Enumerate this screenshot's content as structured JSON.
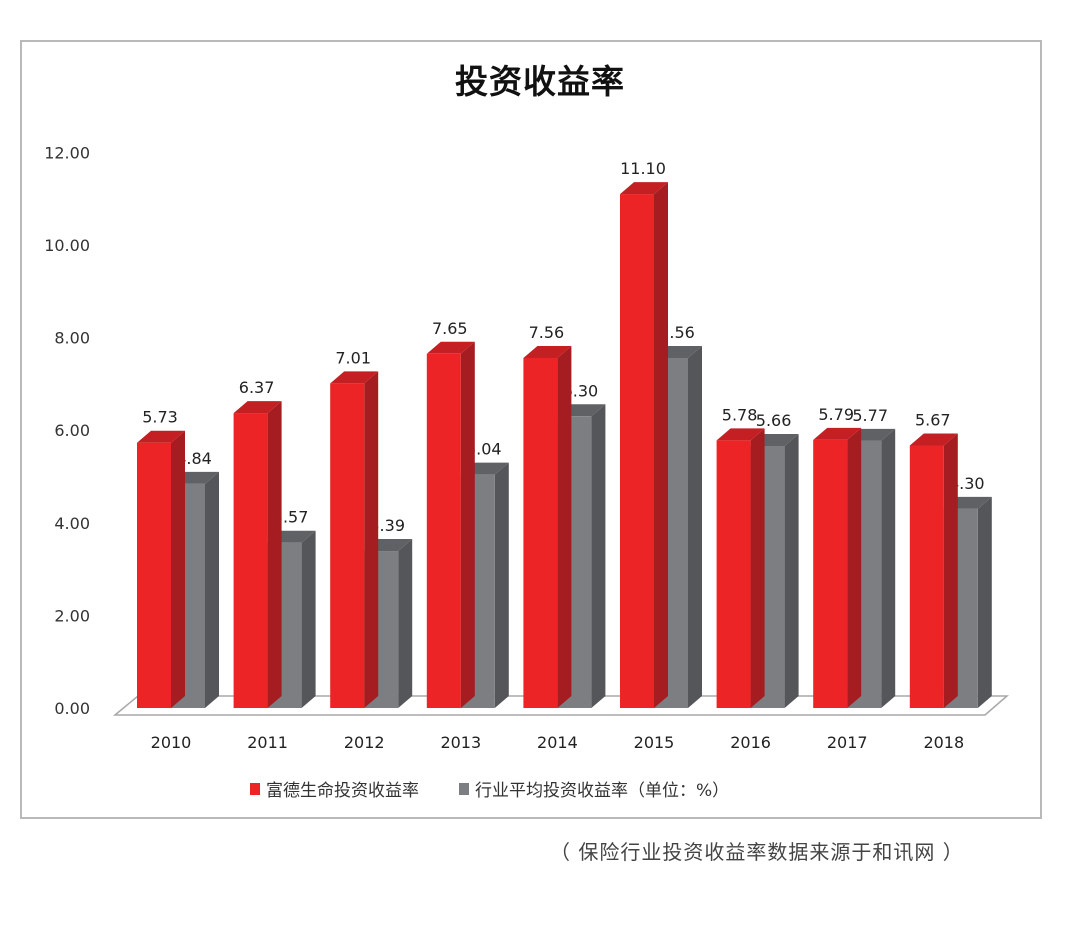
{
  "title": "投资收益率",
  "legend": {
    "series_0": "富德生命投资收益率",
    "series_1": "行业平均投资收益率（单位：%）"
  },
  "source_note": "（ 保险行业投资收益率数据来源于和讯网 ）",
  "colors": {
    "series_0_front": "#ec2426",
    "series_0_side": "#a51d20",
    "series_0_top": "#c42023",
    "series_1_front": "#7d7e82",
    "series_1_side": "#555659",
    "series_1_top": "#606164"
  },
  "chart_data": {
    "type": "bar",
    "title": "投资收益率",
    "xlabel": "",
    "ylabel": "",
    "unit": "%",
    "ylim": [
      0,
      12
    ],
    "yticks": [
      "0.00",
      "2.00",
      "4.00",
      "6.00",
      "8.00",
      "10.00",
      "12.00"
    ],
    "categories": [
      "2010",
      "2011",
      "2012",
      "2013",
      "2014",
      "2015",
      "2016",
      "2017",
      "2018"
    ],
    "series": [
      {
        "name": "富德生命投资收益率",
        "values": [
          5.73,
          6.37,
          7.01,
          7.65,
          7.56,
          11.1,
          5.78,
          5.79,
          5.67
        ]
      },
      {
        "name": "行业平均投资收益率（单位：%）",
        "values": [
          4.84,
          3.57,
          3.39,
          5.04,
          6.3,
          7.56,
          5.66,
          5.77,
          4.3
        ]
      }
    ],
    "grid": false,
    "legend_position": "bottom",
    "style": "3d-clustered-column",
    "source": "（ 保险行业投资收益率数据来源于和讯网 ）"
  }
}
